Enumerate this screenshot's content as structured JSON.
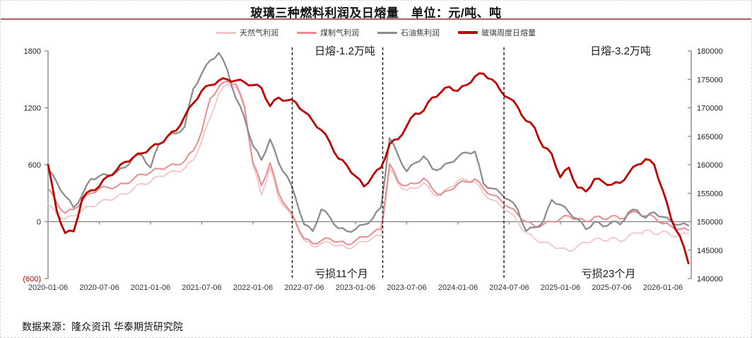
{
  "title": "玻璃三种燃料利润及日熔量　单位：元/吨、吨",
  "source": "数据来源：隆众资讯 华泰期货研究院",
  "annotations": {
    "melt1": "日熔-1.2万吨",
    "melt2": "日熔-3.2万吨",
    "loss1": "亏损11个月",
    "loss2": "亏损23个月"
  },
  "colors": {
    "title_rule": "#a86060",
    "natural_gas": "#f5c2c6",
    "coal_gas": "#e98b8d",
    "petro_coke": "#8c8c8c",
    "melt_volume": "#c00000",
    "axis": "#808080",
    "dashed_line": "#1a1a1a",
    "negative_tick": "#c00000"
  },
  "legend": [
    {
      "id": "natural_gas",
      "label": "天然气利润"
    },
    {
      "id": "coal_gas",
      "label": "煤制气利润"
    },
    {
      "id": "petro_coke",
      "label": "石油焦利润"
    },
    {
      "id": "melt_volume",
      "label": "玻璃周度日熔量"
    }
  ],
  "chart_data": {
    "type": "line",
    "title": "玻璃三种燃料利润及日熔量",
    "units": "元/吨、吨",
    "grid": false,
    "legend_position": "top",
    "left_axis": {
      "range": [
        -600,
        1800
      ],
      "tick_values": [
        1800,
        1200,
        600,
        0,
        -600
      ],
      "tick_labels": [
        "1800",
        "1200",
        "600",
        "0",
        "(600)"
      ]
    },
    "right_axis": {
      "range": [
        140000,
        180000
      ],
      "tick_values": [
        180000,
        175000,
        170000,
        165000,
        160000,
        155000,
        150000,
        145000,
        140000
      ],
      "tick_labels": [
        "180000",
        "175000",
        "170000",
        "165000",
        "160000",
        "155000",
        "150000",
        "145000",
        "140000"
      ]
    },
    "x_tick_labels": [
      "2020-01-06",
      "2020-07-06",
      "2021-01-06",
      "2021-07-06",
      "2022-01-06",
      "2022-07-06",
      "2023-01-06",
      "2023-07-06",
      "2024-01-06",
      "2024-07-06",
      "2025-01-06",
      "2025-07-06",
      "2026-01-06"
    ],
    "dashed_lines_month_index": [
      28.6,
      39.2,
      53.4
    ],
    "months": [
      "2020-01",
      "2020-02",
      "2020-03",
      "2020-04",
      "2020-05",
      "2020-06",
      "2020-07",
      "2020-08",
      "2020-09",
      "2020-10",
      "2020-11",
      "2020-12",
      "2021-01",
      "2021-02",
      "2021-03",
      "2021-04",
      "2021-05",
      "2021-06",
      "2021-07",
      "2021-08",
      "2021-09",
      "2021-10",
      "2021-11",
      "2021-12",
      "2022-01",
      "2022-02",
      "2022-03",
      "2022-04",
      "2022-05",
      "2022-06",
      "2022-07",
      "2022-08",
      "2022-09",
      "2022-10",
      "2022-11",
      "2022-12",
      "2023-01",
      "2023-02",
      "2023-03",
      "2023-04",
      "2023-05",
      "2023-06",
      "2023-07",
      "2023-08",
      "2023-09",
      "2023-10",
      "2023-11",
      "2023-12",
      "2024-01",
      "2024-02",
      "2024-03",
      "2024-04",
      "2024-05",
      "2024-06",
      "2024-07",
      "2024-08",
      "2024-09",
      "2024-10",
      "2024-11",
      "2024-12",
      "2025-01",
      "2025-02",
      "2025-03",
      "2025-04",
      "2025-05",
      "2025-06",
      "2025-07",
      "2025-08",
      "2025-09",
      "2025-10",
      "2025-11",
      "2025-12",
      "2026-01",
      "2026-02",
      "2026-03",
      "2026-04"
    ],
    "series": [
      {
        "id": "natural_gas",
        "name": "天然气利润",
        "axis": "left",
        "values": [
          180,
          80,
          30,
          60,
          120,
          160,
          200,
          230,
          260,
          290,
          350,
          400,
          420,
          480,
          510,
          530,
          560,
          650,
          850,
          1100,
          1350,
          1450,
          1420,
          1200,
          600,
          280,
          570,
          250,
          130,
          -20,
          -200,
          -260,
          -230,
          -220,
          -250,
          -280,
          -250,
          -210,
          -170,
          -150,
          560,
          400,
          330,
          350,
          410,
          300,
          280,
          360,
          430,
          440,
          420,
          300,
          230,
          170,
          100,
          0,
          -120,
          -180,
          -220,
          -250,
          -280,
          -310,
          -260,
          -220,
          -180,
          -200,
          -170,
          -210,
          -150,
          -120,
          -90,
          -130,
          -100,
          -150,
          -140,
          -130
        ]
      },
      {
        "id": "coal_gas",
        "name": "煤制气利润",
        "axis": "left",
        "values": [
          350,
          200,
          90,
          130,
          220,
          300,
          350,
          360,
          370,
          400,
          450,
          500,
          520,
          560,
          580,
          600,
          640,
          750,
          950,
          1300,
          1420,
          1480,
          1450,
          1220,
          620,
          380,
          620,
          300,
          150,
          0,
          -180,
          -230,
          -200,
          -180,
          -210,
          -240,
          -200,
          -160,
          -120,
          -80,
          610,
          420,
          380,
          400,
          460,
          350,
          280,
          330,
          400,
          420,
          450,
          350,
          280,
          230,
          150,
          80,
          0,
          -50,
          -30,
          0,
          30,
          60,
          30,
          0,
          50,
          30,
          60,
          30,
          80,
          100,
          60,
          50,
          -20,
          -50,
          -80,
          -90
        ]
      },
      {
        "id": "petro_coke",
        "name": "石油焦利润",
        "axis": "left",
        "values": [
          550,
          420,
          270,
          150,
          280,
          450,
          480,
          490,
          520,
          570,
          680,
          700,
          570,
          820,
          900,
          930,
          1000,
          1400,
          1560,
          1700,
          1780,
          1600,
          1300,
          1100,
          800,
          650,
          870,
          620,
          480,
          250,
          -30,
          -100,
          130,
          50,
          -70,
          -100,
          -80,
          -30,
          30,
          150,
          880,
          700,
          530,
          620,
          690,
          560,
          560,
          620,
          680,
          730,
          740,
          400,
          350,
          300,
          230,
          130,
          -100,
          -60,
          0,
          230,
          180,
          100,
          30,
          -80,
          0,
          -50,
          0,
          -30,
          100,
          120,
          40,
          100,
          50,
          0,
          -30,
          -40
        ]
      },
      {
        "id": "melt_volume",
        "name": "玻璃周度日熔量",
        "axis": "right",
        "values": [
          160000,
          152000,
          148000,
          148300,
          154000,
          155500,
          156200,
          158000,
          159000,
          160500,
          161300,
          162000,
          163000,
          163600,
          165000,
          166000,
          168500,
          170800,
          173000,
          174000,
          174800,
          175000,
          174800,
          174500,
          174000,
          173500,
          170300,
          171800,
          171300,
          171000,
          169300,
          167700,
          166100,
          164000,
          161100,
          159900,
          158000,
          156200,
          158000,
          159500,
          163600,
          164500,
          166800,
          169000,
          169500,
          171800,
          172700,
          173700,
          173000,
          174000,
          175500,
          176000,
          175000,
          173000,
          171700,
          170200,
          167700,
          166500,
          163100,
          161900,
          157800,
          159500,
          156000,
          155300,
          157500,
          157000,
          156500,
          156800,
          158500,
          160000,
          161000,
          160000,
          155500,
          150400,
          147500,
          142700
        ]
      }
    ]
  }
}
